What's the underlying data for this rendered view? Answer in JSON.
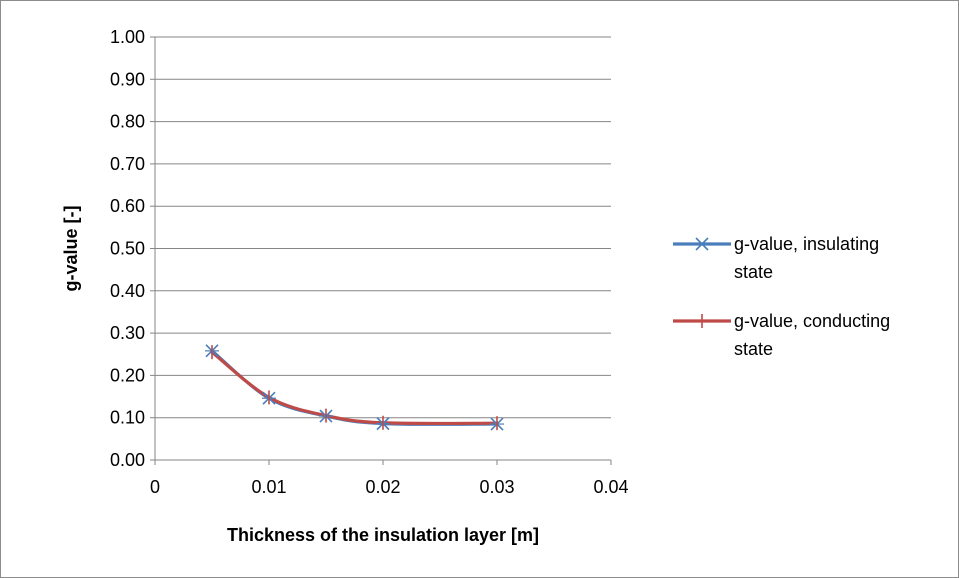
{
  "chart_data": {
    "type": "line",
    "xlabel": "Thickness of the insulation layer [m]",
    "ylabel": "g-value [-]",
    "xlim": [
      0,
      0.04
    ],
    "ylim": [
      0,
      1.0
    ],
    "x_ticks": [
      "0",
      "0.01",
      "0.02",
      "0.03",
      "0.04"
    ],
    "y_ticks": [
      "0.00",
      "0.10",
      "0.20",
      "0.30",
      "0.40",
      "0.50",
      "0.60",
      "0.70",
      "0.80",
      "0.90",
      "1.00"
    ],
    "grid": "horizontal",
    "legend_position": "right",
    "series": [
      {
        "name": "g-value, insulating state",
        "legend_lines": [
          "g-value, insulating",
          "state"
        ],
        "marker": "x-cross",
        "color": "#4a7ebb",
        "x": [
          0.005,
          0.01,
          0.015,
          0.02,
          0.03
        ],
        "y": [
          0.258,
          0.146,
          0.104,
          0.086,
          0.085
        ]
      },
      {
        "name": "g-value, conducting state",
        "legend_lines": [
          "g-value, conducting",
          "state"
        ],
        "marker": "plus",
        "color": "#be4b48",
        "x": [
          0.005,
          0.01,
          0.015,
          0.02,
          0.03
        ],
        "y": [
          0.255,
          0.148,
          0.105,
          0.088,
          0.087
        ]
      }
    ]
  }
}
